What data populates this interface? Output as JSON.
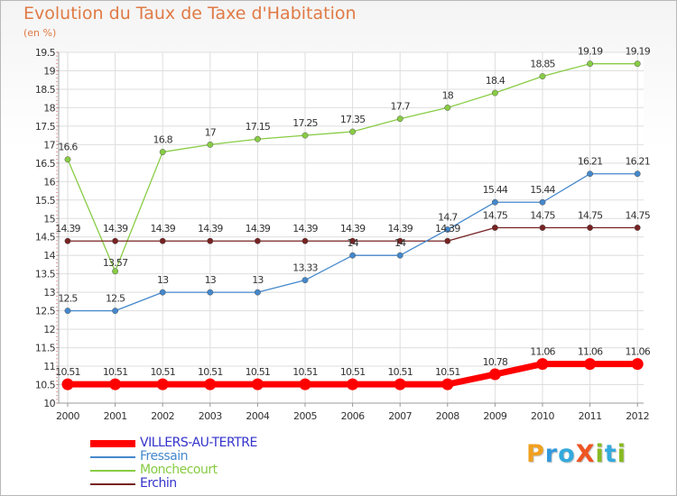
{
  "chart_data": {
    "type": "line",
    "title": "Evolution du Taux de Taxe d'Habitation",
    "subtitle": "(en %)",
    "x": [
      "2000",
      "2001",
      "2002",
      "2003",
      "2004",
      "2005",
      "2006",
      "2007",
      "2008",
      "2009",
      "2010",
      "2011",
      "2012"
    ],
    "ylim": [
      10,
      19.5
    ],
    "yticks": [
      10,
      10.5,
      11,
      11.5,
      12,
      12.5,
      13,
      13.5,
      14,
      14.5,
      15,
      15.5,
      16,
      16.5,
      17,
      17.5,
      18,
      18.5,
      19,
      19.5
    ],
    "grid": true,
    "legend_position": "bottom-left",
    "series": [
      {
        "name": "Monchecourt",
        "color": "#88cc44",
        "values": [
          16.6,
          13.57,
          16.8,
          17,
          17.15,
          17.25,
          17.35,
          17.7,
          18,
          18.4,
          18.85,
          19.19,
          19.19
        ],
        "labels": [
          "16.6",
          "13.57",
          "16.8",
          "17",
          "17.15",
          "17.25",
          "17.35",
          "17.7",
          "18",
          "18.4",
          "18.85",
          "19.19",
          "19.19"
        ]
      },
      {
        "name": "Erchin",
        "color": "#772222",
        "values": [
          14.39,
          14.39,
          14.39,
          14.39,
          14.39,
          14.39,
          14.39,
          14.39,
          14.39,
          14.75,
          14.75,
          14.75,
          14.75
        ],
        "labels": [
          "14.39",
          "14.39",
          "14.39",
          "14.39",
          "14.39",
          "14.39",
          "14.39",
          "14.39",
          "14.39",
          "14.75",
          "14.75",
          "14.75",
          "14.75"
        ]
      },
      {
        "name": "Fressain",
        "color": "#4488cc",
        "values": [
          12.5,
          12.5,
          13,
          13,
          13,
          13.33,
          14,
          14,
          14.7,
          15.44,
          15.44,
          16.21,
          16.21
        ],
        "labels": [
          "12.5",
          "12.5",
          "13",
          "13",
          "13",
          "13.33",
          "14",
          "14",
          "14.7",
          "15.44",
          "15.44",
          "16.21",
          "16.21"
        ]
      },
      {
        "name": "VILLERS-AU-TERTRE",
        "color": "#ff0000",
        "values": [
          10.51,
          10.51,
          10.51,
          10.51,
          10.51,
          10.51,
          10.51,
          10.51,
          10.51,
          10.78,
          11.06,
          11.06,
          11.06
        ],
        "labels": [
          "10.51",
          "10.51",
          "10.51",
          "10.51",
          "10.51",
          "10.51",
          "10.51",
          "10.51",
          "10.51",
          "10.78",
          "11.06",
          "11.06",
          "11.06"
        ]
      }
    ]
  },
  "legend": [
    {
      "name": "VILLERS-AU-TERTRE",
      "color": "#ff0000",
      "label_color": "#3333cc"
    },
    {
      "name": "Fressain",
      "color": "#4488cc",
      "label_color": "#4488cc"
    },
    {
      "name": "Monchecourt",
      "color": "#88cc44",
      "label_color": "#88cc44"
    },
    {
      "name": "Erchin",
      "color": "#772222",
      "label_color": "#3333cc"
    }
  ],
  "logo": {
    "text": "ProXiti",
    "letters": [
      {
        "ch": "P",
        "color": "#f0a020"
      },
      {
        "ch": "r",
        "color": "#3399dd"
      },
      {
        "ch": "o",
        "color": "#33aadd"
      },
      {
        "ch": "X",
        "color": "#ee5522"
      },
      {
        "ch": "i",
        "color": "#88bb22"
      },
      {
        "ch": "t",
        "color": "#33aadd"
      },
      {
        "ch": "i",
        "color": "#88bb22"
      }
    ]
  }
}
